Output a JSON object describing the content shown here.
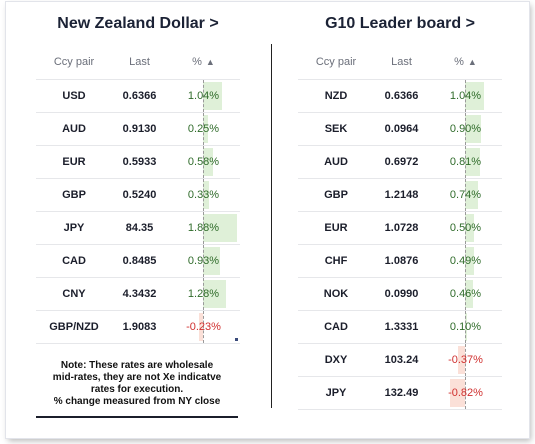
{
  "left_panel": {
    "title": "New Zealand Dollar >",
    "headers": {
      "pair": "Ccy pair",
      "last": "Last",
      "pct": "%"
    },
    "rows": [
      {
        "pair": "USD",
        "last": "0.6366",
        "pct": "1.04%",
        "change": 1.04
      },
      {
        "pair": "AUD",
        "last": "0.9130",
        "pct": "0.25%",
        "change": 0.25
      },
      {
        "pair": "EUR",
        "last": "0.5933",
        "pct": "0.58%",
        "change": 0.58
      },
      {
        "pair": "GBP",
        "last": "0.5240",
        "pct": "0.33%",
        "change": 0.33
      },
      {
        "pair": "JPY",
        "last": "84.35",
        "pct": "1.88%",
        "change": 1.88
      },
      {
        "pair": "CAD",
        "last": "0.8485",
        "pct": "0.93%",
        "change": 0.93
      },
      {
        "pair": "CNY",
        "last": "4.3432",
        "pct": "1.28%",
        "change": 1.28
      },
      {
        "pair": "GBP/NZD",
        "last": "1.9083",
        "pct": "-0.23%",
        "change": -0.23
      }
    ],
    "note_lines": [
      "Note: These rates are wholesale",
      "mid-rates, they are not Xe indicatve",
      "rates for execution.",
      "% change measured from NY close"
    ]
  },
  "right_panel": {
    "title": "G10 Leader board >",
    "headers": {
      "pair": "Ccy pair",
      "last": "Last",
      "pct": "%"
    },
    "rows": [
      {
        "pair": "NZD",
        "last": "0.6366",
        "pct": "1.04%",
        "change": 1.04
      },
      {
        "pair": "SEK",
        "last": "0.0964",
        "pct": "0.90%",
        "change": 0.9
      },
      {
        "pair": "AUD",
        "last": "0.6972",
        "pct": "0.81%",
        "change": 0.81
      },
      {
        "pair": "GBP",
        "last": "1.2148",
        "pct": "0.74%",
        "change": 0.74
      },
      {
        "pair": "EUR",
        "last": "1.0728",
        "pct": "0.50%",
        "change": 0.5
      },
      {
        "pair": "CHF",
        "last": "1.0876",
        "pct": "0.49%",
        "change": 0.49
      },
      {
        "pair": "NOK",
        "last": "0.0990",
        "pct": "0.46%",
        "change": 0.46
      },
      {
        "pair": "CAD",
        "last": "1.3331",
        "pct": "0.10%",
        "change": 0.1
      },
      {
        "pair": "DXY",
        "last": "103.24",
        "pct": "-0.37%",
        "change": -0.37
      },
      {
        "pair": "JPY",
        "last": "132.49",
        "pct": "-0.82%",
        "change": -0.82
      }
    ]
  },
  "sort_icon": "triangle-up-icon",
  "colors": {
    "positive_bar": "#dff0d8",
    "negative_bar": "#fbe0d8",
    "positive_text": "#2f6b2a",
    "negative_text": "#d0302f"
  }
}
